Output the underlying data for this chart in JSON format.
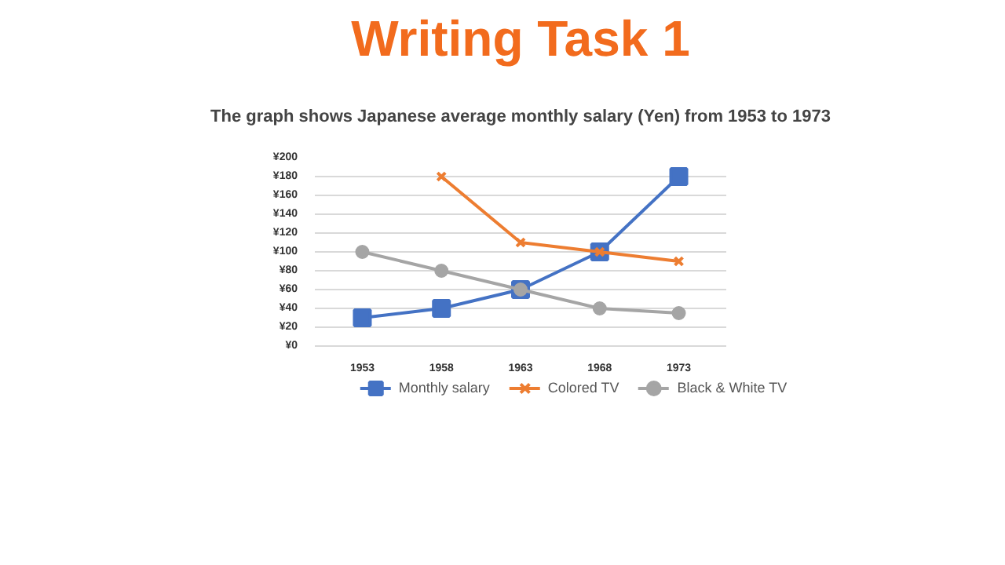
{
  "chart_data": {
    "type": "line",
    "title": "Writing Task 1",
    "subtitle": "The graph shows Japanese average monthly salary (Yen) from 1953 to 1973",
    "categories": [
      "1953",
      "1958",
      "1963",
      "1968",
      "1973"
    ],
    "series": [
      {
        "name": "Monthly salary",
        "color": "#4472c4",
        "marker": "square",
        "values": [
          30,
          40,
          60,
          100,
          180
        ]
      },
      {
        "name": "Colored TV",
        "color": "#ed7d31",
        "marker": "cross",
        "values": [
          null,
          180,
          110,
          100,
          90
        ]
      },
      {
        "name": "Black & White TV",
        "color": "#a5a5a5",
        "marker": "circle",
        "values": [
          100,
          80,
          60,
          40,
          35
        ]
      }
    ],
    "ylim": [
      0,
      200
    ],
    "yticks": [
      {
        "value": 0,
        "label": "¥0"
      },
      {
        "value": 20,
        "label": "¥20"
      },
      {
        "value": 40,
        "label": "¥40"
      },
      {
        "value": 60,
        "label": "¥60"
      },
      {
        "value": 80,
        "label": "¥80"
      },
      {
        "value": 100,
        "label": "¥100"
      },
      {
        "value": 120,
        "label": "¥120"
      },
      {
        "value": 140,
        "label": "¥140"
      },
      {
        "value": 160,
        "label": "¥160"
      },
      {
        "value": 180,
        "label": "¥180"
      },
      {
        "value": 200,
        "label": "¥200"
      }
    ],
    "grid": "y",
    "legend": "bottom",
    "line_style": "solid"
  }
}
